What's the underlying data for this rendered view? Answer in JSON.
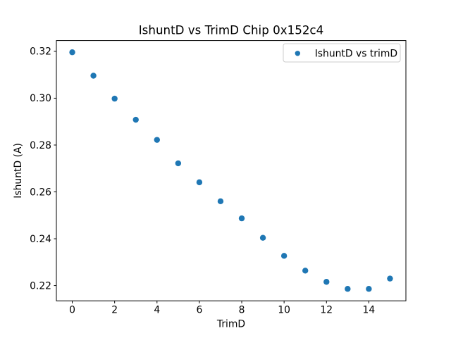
{
  "figure": {
    "title": "IshuntD vs TrimD Chip 0x152c4",
    "xlabel": "TrimD",
    "ylabel": "IshuntD (A)",
    "background_color": "#ffffff",
    "spine_color": "#000000",
    "legend": {
      "label": "IshuntD vs trimD",
      "marker": "dot",
      "marker_color": "#1f77b4",
      "border_color": "#cccccc",
      "position": "upper right"
    }
  },
  "chart_data": {
    "type": "scatter",
    "title": "IshuntD vs TrimD Chip 0x152c4",
    "xlabel": "TrimD",
    "ylabel": "IshuntD (A)",
    "grid": false,
    "legend_position": "upper right",
    "marker_color": "#1f77b4",
    "xlim": [
      -0.75,
      15.75
    ],
    "ylim": [
      0.2135,
      0.3246
    ],
    "xticks": {
      "values": [
        0,
        2,
        4,
        6,
        8,
        10,
        12,
        14
      ],
      "labels": [
        "0",
        "2",
        "4",
        "6",
        "8",
        "10",
        "12",
        "14"
      ]
    },
    "yticks": {
      "values": [
        0.22,
        0.24,
        0.26,
        0.28,
        0.3,
        0.32
      ],
      "labels": [
        "0.22",
        "0.24",
        "0.26",
        "0.28",
        "0.30",
        "0.32"
      ]
    },
    "series": [
      {
        "name": "IshuntD vs trimD",
        "x": [
          0,
          1,
          2,
          3,
          4,
          5,
          6,
          7,
          8,
          9,
          10,
          11,
          12,
          13,
          14,
          15
        ],
        "y": [
          0.3196,
          0.3096,
          0.2998,
          0.2908,
          0.2822,
          0.2722,
          0.2641,
          0.256,
          0.2487,
          0.2404,
          0.2327,
          0.2264,
          0.2216,
          0.2186,
          0.2186,
          0.223
        ]
      }
    ]
  }
}
